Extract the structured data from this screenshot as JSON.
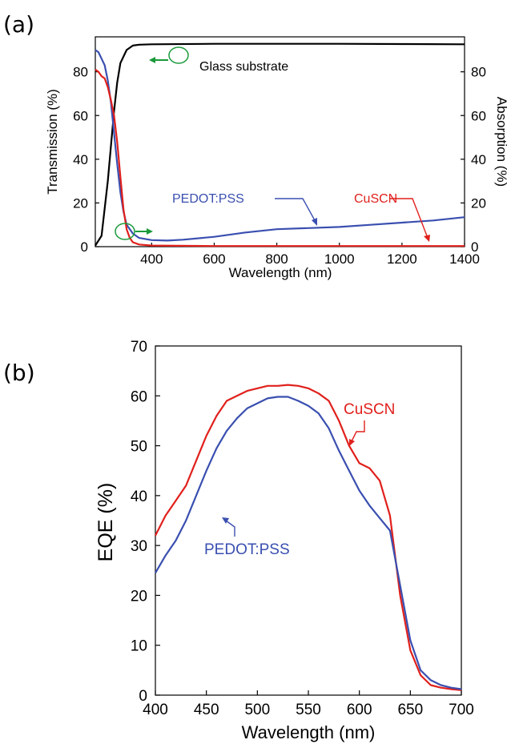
{
  "chart_data": [
    {
      "panel": "(a)",
      "type": "line",
      "xlabel": "Wavelength (nm)",
      "ylabel": "Transmission (%)",
      "ylabel_right": "Absorption (%)",
      "xlim": [
        220,
        1400
      ],
      "ylim": [
        0,
        96
      ],
      "x_ticks": [
        400,
        600,
        800,
        1000,
        1200,
        1400
      ],
      "y_ticks": [
        0,
        20,
        40,
        60,
        80
      ],
      "y_ticks_right": [
        0,
        20,
        40,
        60,
        80
      ],
      "grid": false,
      "series": [
        {
          "name": "Glass substrate",
          "color": "#000000",
          "x": [
            220,
            240,
            260,
            280,
            290,
            300,
            320,
            340,
            360,
            400,
            600,
            800,
            1000,
            1200,
            1400
          ],
          "y": [
            0.5,
            5,
            30,
            62,
            75,
            84,
            90,
            92,
            92.4,
            92.6,
            92.8,
            92.8,
            92.8,
            92.7,
            92.6
          ]
        },
        {
          "name": "PEDOT:PSS",
          "color": "#3a4fb0",
          "x": [
            220,
            230,
            240,
            250,
            260,
            270,
            280,
            290,
            300,
            310,
            320,
            340,
            360,
            400,
            450,
            500,
            600,
            700,
            800,
            900,
            1000,
            1100,
            1200,
            1300,
            1400
          ],
          "y": [
            90,
            89,
            86,
            83,
            76,
            66,
            52,
            38,
            25,
            16,
            10,
            6,
            4,
            3,
            2.8,
            3.2,
            4.5,
            6.5,
            8,
            8.5,
            9,
            10,
            11,
            12,
            13.5
          ]
        },
        {
          "name": "CuSCN",
          "color": "#e0201c",
          "x": [
            220,
            230,
            240,
            250,
            260,
            270,
            280,
            290,
            300,
            310,
            320,
            330,
            340,
            360,
            400,
            600,
            800,
            1000,
            1200,
            1400
          ],
          "y": [
            81,
            80,
            78,
            77,
            73,
            67,
            60,
            48,
            32,
            17,
            8,
            4,
            2,
            1,
            0.5,
            0.3,
            0.3,
            0.3,
            0.3,
            0.3
          ]
        }
      ],
      "annotations": [
        "Glass substrate",
        "PEDOT:PSS",
        "CuSCN"
      ]
    },
    {
      "panel": "(b)",
      "type": "line",
      "xlabel": "Wavelength (nm)",
      "ylabel": "EQE (%)",
      "xlim": [
        400,
        700
      ],
      "ylim": [
        0,
        70
      ],
      "x_ticks": [
        400,
        450,
        500,
        550,
        600,
        650,
        700
      ],
      "y_ticks": [
        0,
        10,
        20,
        30,
        40,
        50,
        60,
        70
      ],
      "grid": false,
      "series": [
        {
          "name": "CuSCN",
          "color": "#e0201c",
          "x": [
            400,
            410,
            420,
            430,
            440,
            450,
            460,
            470,
            480,
            490,
            500,
            510,
            520,
            530,
            540,
            550,
            560,
            570,
            580,
            590,
            600,
            610,
            620,
            630,
            640,
            650,
            660,
            670,
            680,
            690,
            700
          ],
          "y": [
            32,
            36,
            39,
            42,
            47,
            52,
            56,
            59,
            60,
            61,
            61.5,
            62,
            62,
            62.2,
            62,
            61.5,
            60.5,
            59,
            55,
            50,
            46.5,
            45.5,
            43,
            36,
            20,
            9,
            4,
            2,
            1.5,
            1.2,
            1
          ]
        },
        {
          "name": "PEDOT:PSS",
          "color": "#3a4fb0",
          "x": [
            400,
            410,
            420,
            430,
            440,
            450,
            460,
            470,
            480,
            490,
            500,
            510,
            520,
            530,
            540,
            550,
            560,
            570,
            580,
            590,
            600,
            610,
            620,
            630,
            640,
            650,
            660,
            670,
            680,
            690,
            700
          ],
          "y": [
            24.5,
            28,
            31,
            35,
            40,
            45,
            49.5,
            53,
            55.5,
            57.5,
            58.5,
            59.5,
            59.8,
            59.8,
            59,
            58,
            56.5,
            53.5,
            49,
            45,
            41,
            38,
            35.5,
            33,
            22,
            11,
            5,
            3,
            2,
            1.5,
            1.2
          ]
        }
      ],
      "annotations": [
        "CuSCN",
        "PEDOT:PSS"
      ]
    }
  ]
}
